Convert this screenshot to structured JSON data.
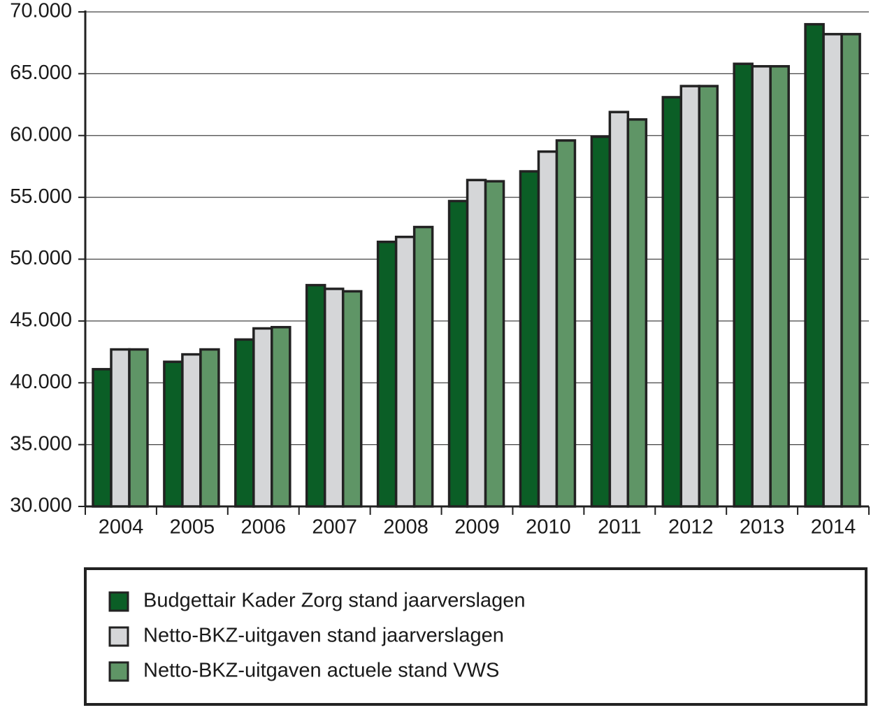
{
  "chart_data": {
    "type": "bar",
    "categories": [
      "2004",
      "2005",
      "2006",
      "2007",
      "2008",
      "2009",
      "2010",
      "2011",
      "2012",
      "2013",
      "2014"
    ],
    "series": [
      {
        "name": "Budgettair Kader Zorg stand jaarverslagen",
        "color": "#0b5e26",
        "values": [
          41100,
          41700,
          43500,
          47900,
          51400,
          54700,
          57100,
          59900,
          63100,
          65800,
          69000
        ]
      },
      {
        "name": "Netto-BKZ-uitgaven stand jaarverslagen",
        "color": "#d5d6d8",
        "values": [
          42700,
          42300,
          44400,
          47600,
          51800,
          56400,
          58700,
          61900,
          64000,
          65600,
          68200
        ]
      },
      {
        "name": "Netto-BKZ-uitgaven actuele stand VWS",
        "color": "#5f9566",
        "values": [
          42700,
          42700,
          44500,
          47400,
          52600,
          56300,
          59600,
          61300,
          64000,
          65600,
          68200
        ]
      }
    ],
    "ylim": [
      30000,
      70000
    ],
    "yticks": [
      {
        "value": 30000,
        "label": "30.000"
      },
      {
        "value": 35000,
        "label": "35.000"
      },
      {
        "value": 40000,
        "label": "40.000"
      },
      {
        "value": 45000,
        "label": "45.000"
      },
      {
        "value": 50000,
        "label": "50.000"
      },
      {
        "value": 55000,
        "label": "55.000"
      },
      {
        "value": 60000,
        "label": "60.000"
      },
      {
        "value": 65000,
        "label": "65.000"
      },
      {
        "value": 70000,
        "label": "70.000"
      }
    ],
    "grid": true
  }
}
